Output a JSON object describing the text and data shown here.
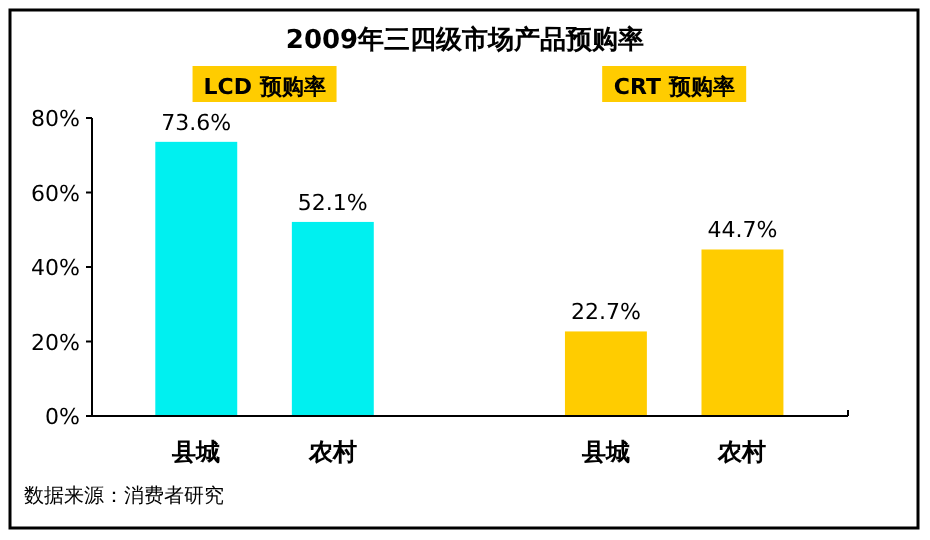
{
  "chart_data": {
    "type": "bar",
    "title": "2009年三四级市场产品预购率",
    "categories": [
      "县城",
      "农村",
      null,
      "县城",
      "农村"
    ],
    "values": [
      73.6,
      52.1,
      null,
      22.7,
      44.7
    ],
    "colors": [
      "#00f0f0",
      "#00f0f0",
      null,
      "#ffcc00",
      "#ffcc00"
    ],
    "value_labels": [
      "73.6%",
      "52.1%",
      null,
      "22.7%",
      "44.7%"
    ],
    "ylim": [
      0,
      80
    ],
    "yticks": [
      {
        "value": 0,
        "label": "0%"
      },
      {
        "value": 20,
        "label": "20%"
      },
      {
        "value": 40,
        "label": "40%"
      },
      {
        "value": 60,
        "label": "60%"
      },
      {
        "value": 80,
        "label": "80%"
      }
    ],
    "grid": false,
    "annotations": [
      "LCD 预购率",
      "CRT 预购率",
      "数据来源：消费者研究"
    ]
  }
}
